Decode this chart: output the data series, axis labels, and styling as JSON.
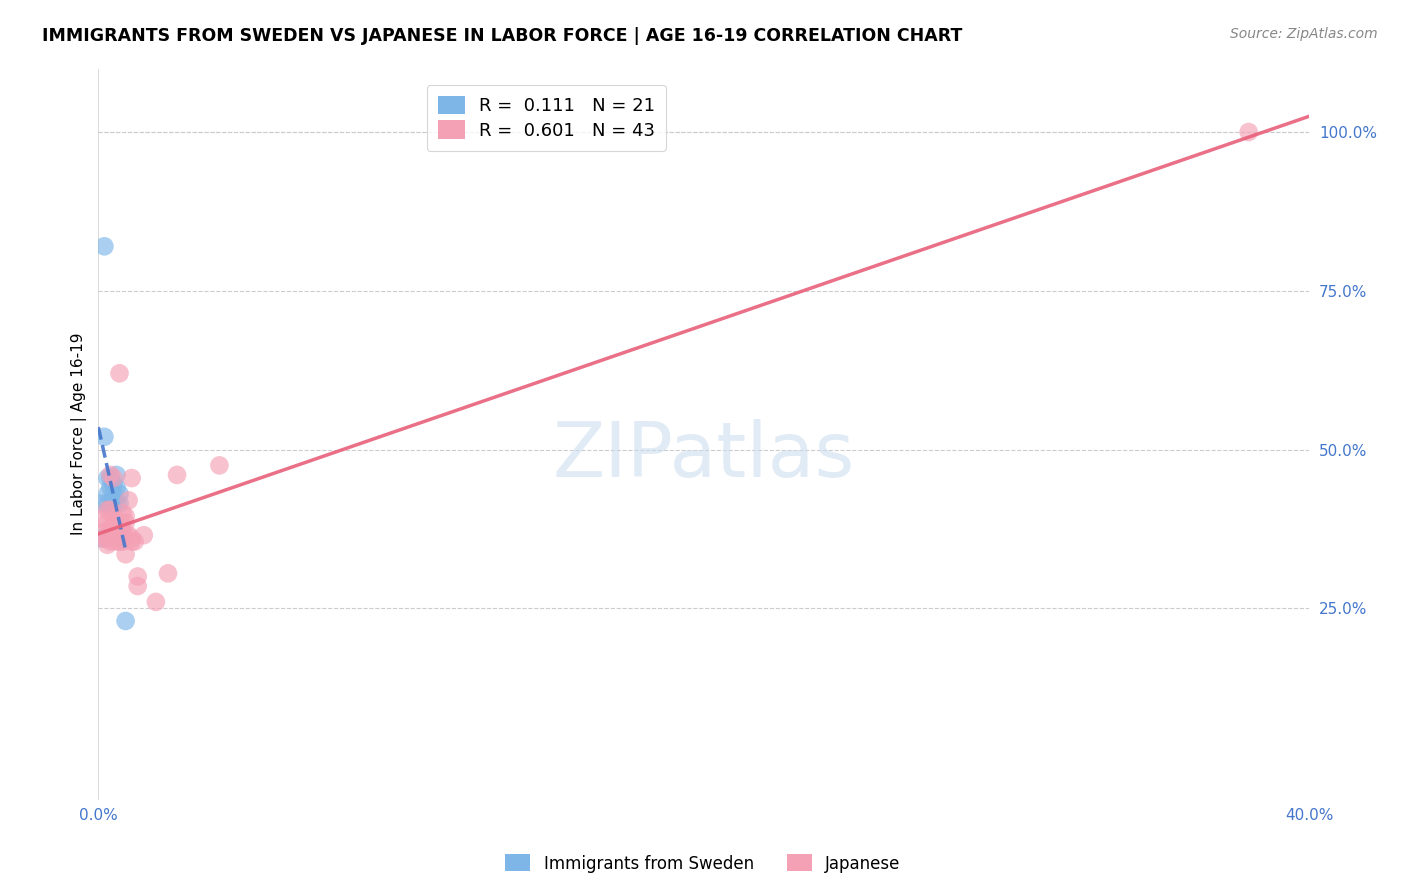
{
  "title": "IMMIGRANTS FROM SWEDEN VS JAPANESE IN LABOR FORCE | AGE 16-19 CORRELATION CHART",
  "source": "Source: ZipAtlas.com",
  "ylabel_label": "In Labor Force | Age 16-19",
  "xlim": [
    0.0,
    0.4
  ],
  "ylim": [
    -0.05,
    1.1
  ],
  "sweden_color": "#7EB6E8",
  "japanese_color": "#F4A0B5",
  "sweden_line_color": "#4477CC",
  "japanese_line_color": "#E8607A",
  "R_sweden": 0.111,
  "N_sweden": 21,
  "R_japanese": 0.601,
  "N_japanese": 43,
  "legend_label_sweden": "Immigrants from Sweden",
  "legend_label_japanese": "Japanese",
  "watermark": "ZIPatlas",
  "sweden_points": [
    [
      0.001,
      0.415
    ],
    [
      0.002,
      0.82
    ],
    [
      0.002,
      0.52
    ],
    [
      0.003,
      0.415
    ],
    [
      0.003,
      0.43
    ],
    [
      0.003,
      0.455
    ],
    [
      0.004,
      0.41
    ],
    [
      0.004,
      0.44
    ],
    [
      0.004,
      0.455
    ],
    [
      0.005,
      0.42
    ],
    [
      0.005,
      0.445
    ],
    [
      0.005,
      0.43
    ],
    [
      0.005,
      0.415
    ],
    [
      0.006,
      0.44
    ],
    [
      0.006,
      0.46
    ],
    [
      0.006,
      0.415
    ],
    [
      0.007,
      0.43
    ],
    [
      0.007,
      0.415
    ],
    [
      0.008,
      0.36
    ],
    [
      0.009,
      0.23
    ],
    [
      0.001,
      0.36
    ]
  ],
  "japanese_points": [
    [
      0.001,
      0.39
    ],
    [
      0.002,
      0.37
    ],
    [
      0.002,
      0.36
    ],
    [
      0.003,
      0.385
    ],
    [
      0.003,
      0.405
    ],
    [
      0.003,
      0.36
    ],
    [
      0.003,
      0.35
    ],
    [
      0.004,
      0.375
    ],
    [
      0.004,
      0.405
    ],
    [
      0.004,
      0.46
    ],
    [
      0.004,
      0.355
    ],
    [
      0.005,
      0.395
    ],
    [
      0.005,
      0.455
    ],
    [
      0.005,
      0.36
    ],
    [
      0.005,
      0.38
    ],
    [
      0.006,
      0.355
    ],
    [
      0.006,
      0.38
    ],
    [
      0.006,
      0.385
    ],
    [
      0.007,
      0.37
    ],
    [
      0.007,
      0.385
    ],
    [
      0.007,
      0.355
    ],
    [
      0.007,
      0.62
    ],
    [
      0.008,
      0.4
    ],
    [
      0.008,
      0.355
    ],
    [
      0.008,
      0.365
    ],
    [
      0.008,
      0.375
    ],
    [
      0.009,
      0.385
    ],
    [
      0.009,
      0.395
    ],
    [
      0.009,
      0.335
    ],
    [
      0.01,
      0.42
    ],
    [
      0.01,
      0.365
    ],
    [
      0.011,
      0.355
    ],
    [
      0.011,
      0.455
    ],
    [
      0.011,
      0.36
    ],
    [
      0.012,
      0.355
    ],
    [
      0.013,
      0.3
    ],
    [
      0.013,
      0.285
    ],
    [
      0.015,
      0.365
    ],
    [
      0.019,
      0.26
    ],
    [
      0.023,
      0.305
    ],
    [
      0.026,
      0.46
    ],
    [
      0.04,
      0.475
    ],
    [
      0.38,
      1.0
    ]
  ]
}
